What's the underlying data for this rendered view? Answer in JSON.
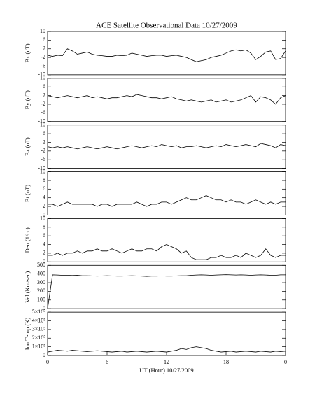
{
  "chart_data": [
    {
      "type": "line",
      "title": "ACE Satellite Observational Data   10/27/2009",
      "ylabel": "Bx (nT)",
      "color": "#000000",
      "xlim": [
        0,
        24
      ],
      "ylim": [
        -10,
        10
      ],
      "yticks": [
        -10,
        -6,
        -2,
        2,
        6,
        10
      ],
      "x": [
        0,
        0.5,
        1,
        1.5,
        2,
        2.5,
        3,
        3.5,
        4,
        4.5,
        5,
        5.5,
        6,
        6.5,
        7,
        7.5,
        8,
        8.5,
        9,
        9.5,
        10,
        10.5,
        11,
        11.5,
        12,
        12.5,
        13,
        13.5,
        14,
        14.5,
        15,
        15.5,
        16,
        16.5,
        17,
        17.5,
        18,
        18.5,
        19,
        19.5,
        20,
        20.5,
        21,
        21.5,
        22,
        22.5,
        23,
        23.5,
        24
      ],
      "values": [
        -1,
        -1.5,
        -1,
        -1.2,
        2,
        1,
        -0.5,
        0,
        0.5,
        -0.5,
        -1,
        -1.2,
        -1.5,
        -1.5,
        -1,
        -1.2,
        -1,
        0,
        -0.5,
        -1,
        -1.5,
        -1.2,
        -1,
        -1,
        -1.5,
        -1.2,
        -1,
        -1.5,
        -2,
        -3,
        -4,
        -3.5,
        -3,
        -2,
        -1.5,
        -1,
        0,
        1,
        1.5,
        1,
        1.5,
        0,
        -3,
        -1.5,
        0.5,
        1,
        -3,
        -2.5,
        1
      ]
    },
    {
      "type": "line",
      "ylabel": "By (nT)",
      "color": "#000000",
      "xlim": [
        0,
        24
      ],
      "ylim": [
        -10,
        10
      ],
      "yticks": [
        -10,
        -6,
        -2,
        2,
        6,
        10
      ],
      "x": [
        0,
        0.5,
        1,
        1.5,
        2,
        2.5,
        3,
        3.5,
        4,
        4.5,
        5,
        5.5,
        6,
        6.5,
        7,
        7.5,
        8,
        8.5,
        9,
        9.5,
        10,
        10.5,
        11,
        11.5,
        12,
        12.5,
        13,
        13.5,
        14,
        14.5,
        15,
        15.5,
        16,
        16.5,
        17,
        17.5,
        18,
        18.5,
        19,
        19.5,
        20,
        20.5,
        21,
        21.5,
        22,
        22.5,
        23,
        23.5,
        24
      ],
      "values": [
        2,
        1.5,
        1,
        1.5,
        2,
        1.5,
        1,
        1.5,
        2,
        1,
        1.5,
        1,
        0.5,
        1,
        1,
        1.5,
        2,
        1.5,
        2.5,
        2,
        1.5,
        1,
        1,
        0.5,
        1,
        1.5,
        0.5,
        0,
        -0.5,
        0,
        -0.5,
        -1,
        -0.5,
        0,
        -1,
        -0.5,
        0,
        -1,
        -0.5,
        0,
        1,
        2,
        -1,
        1.5,
        1,
        0,
        -2,
        1,
        2
      ]
    },
    {
      "type": "line",
      "ylabel": "Bz (nT)",
      "color": "#000000",
      "xlim": [
        0,
        24
      ],
      "ylim": [
        -10,
        10
      ],
      "yticks": [
        -10,
        -6,
        -2,
        2,
        6,
        10
      ],
      "x": [
        0,
        0.5,
        1,
        1.5,
        2,
        2.5,
        3,
        3.5,
        4,
        4.5,
        5,
        5.5,
        6,
        6.5,
        7,
        7.5,
        8,
        8.5,
        9,
        9.5,
        10,
        10.5,
        11,
        11.5,
        12,
        12.5,
        13,
        13.5,
        14,
        14.5,
        15,
        15.5,
        16,
        16.5,
        17,
        17.5,
        18,
        18.5,
        19,
        19.5,
        20,
        20.5,
        21,
        21.5,
        22,
        22.5,
        23,
        23.5,
        24
      ],
      "values": [
        0,
        -0.5,
        0,
        -0.5,
        0,
        -0.5,
        -1,
        -0.5,
        0,
        -0.5,
        -1,
        -0.5,
        0,
        -0.5,
        -1,
        -0.5,
        0,
        0.5,
        0,
        -0.5,
        0,
        0.5,
        0,
        1,
        0.5,
        0,
        0.5,
        -0.5,
        0,
        0,
        0.5,
        0,
        -0.5,
        0,
        0.5,
        0,
        1,
        0.5,
        0,
        0.5,
        1,
        0.5,
        0,
        1.5,
        1,
        0.5,
        -0.5,
        1,
        0.5
      ]
    },
    {
      "type": "line",
      "ylabel": "Bt (nT)",
      "color": "#000000",
      "xlim": [
        0,
        24
      ],
      "ylim": [
        0,
        10
      ],
      "yticks": [
        0,
        2,
        4,
        6,
        8,
        10
      ],
      "x": [
        0,
        0.5,
        1,
        1.5,
        2,
        2.5,
        3,
        3.5,
        4,
        4.5,
        5,
        5.5,
        6,
        6.5,
        7,
        7.5,
        8,
        8.5,
        9,
        9.5,
        10,
        10.5,
        11,
        11.5,
        12,
        12.5,
        13,
        13.5,
        14,
        14.5,
        15,
        15.5,
        16,
        16.5,
        17,
        17.5,
        18,
        18.5,
        19,
        19.5,
        20,
        20.5,
        21,
        21.5,
        22,
        22.5,
        23,
        23.5,
        24
      ],
      "values": [
        2.5,
        2.5,
        2,
        2.5,
        3,
        2.5,
        2.5,
        2.5,
        2.5,
        2.5,
        2,
        2.5,
        2.5,
        2,
        2.5,
        2.5,
        2.5,
        2.5,
        3,
        2.5,
        2,
        2.5,
        2.5,
        3,
        3,
        2.5,
        3,
        3.5,
        4,
        3.5,
        3.5,
        4,
        4.5,
        4,
        3.5,
        3.5,
        3,
        3.5,
        3,
        3,
        2.5,
        3,
        3.5,
        3,
        2.5,
        3,
        2.5,
        3,
        3
      ]
    },
    {
      "type": "line",
      "ylabel": "Den (1/cc)",
      "color": "#000000",
      "xlim": [
        0,
        24
      ],
      "ylim": [
        0,
        10
      ],
      "yticks": [
        0,
        2,
        4,
        6,
        8,
        10
      ],
      "x": [
        0,
        0.5,
        1,
        1.5,
        2,
        2.5,
        3,
        3.5,
        4,
        4.5,
        5,
        5.5,
        6,
        6.5,
        7,
        7.5,
        8,
        8.5,
        9,
        9.5,
        10,
        10.5,
        11,
        11.5,
        12,
        12.5,
        13,
        13.5,
        14,
        14.5,
        15,
        15.5,
        16,
        16.5,
        17,
        17.5,
        18,
        18.5,
        19,
        19.5,
        20,
        20.5,
        21,
        21.5,
        22,
        22.5,
        23,
        23.5,
        24
      ],
      "values": [
        1.5,
        1.5,
        2,
        1.5,
        2,
        2,
        2.5,
        2,
        2.5,
        2.5,
        3,
        2.5,
        2.5,
        3,
        2.5,
        2,
        2.5,
        3,
        2.5,
        2.5,
        3,
        3,
        2.5,
        3.5,
        4,
        3.5,
        3,
        2,
        2.5,
        1,
        0.5,
        0.5,
        0.5,
        1,
        1,
        1.5,
        1,
        1,
        1.5,
        1,
        2,
        1.5,
        1,
        1.5,
        3,
        1.5,
        1,
        1.5,
        1.5
      ]
    },
    {
      "type": "line",
      "ylabel": "Vel (Km/sec)",
      "color": "#000000",
      "xlim": [
        0,
        24
      ],
      "ylim": [
        0,
        500
      ],
      "yticks": [
        0,
        100,
        200,
        300,
        400,
        500
      ],
      "x": [
        0,
        0.5,
        1,
        1.5,
        2,
        2.5,
        3,
        3.5,
        4,
        4.5,
        5,
        5.5,
        6,
        6.5,
        7,
        7.5,
        8,
        8.5,
        9,
        9.5,
        10,
        10.5,
        11,
        11.5,
        12,
        12.5,
        13,
        13.5,
        14,
        14.5,
        15,
        15.5,
        16,
        16.5,
        17,
        17.5,
        18,
        18.5,
        19,
        19.5,
        20,
        20.5,
        21,
        21.5,
        22,
        22.5,
        23,
        23.5,
        24
      ],
      "values": [
        0,
        390,
        388,
        385,
        385,
        383,
        385,
        380,
        380,
        378,
        375,
        378,
        380,
        378,
        375,
        375,
        378,
        380,
        378,
        375,
        372,
        375,
        375,
        378,
        375,
        375,
        378,
        380,
        380,
        385,
        388,
        390,
        388,
        385,
        388,
        390,
        392,
        390,
        388,
        390,
        388,
        385,
        388,
        390,
        388,
        385,
        385,
        390,
        390
      ]
    },
    {
      "type": "line",
      "ylabel": "Ion Temp (K)",
      "xlabel": "UT (Hour)  10/27/2009",
      "color": "#000000",
      "xlim": [
        0,
        24
      ],
      "xticks": [
        0,
        6,
        12,
        18,
        {
          "value": 24,
          "label": "0"
        }
      ],
      "ylim": [
        0,
        500000
      ],
      "yticks": [
        0,
        {
          "value": 100000,
          "label": "1×10⁵"
        },
        {
          "value": 200000,
          "label": "2×10⁵"
        },
        {
          "value": 300000,
          "label": "3×10⁵"
        },
        {
          "value": 400000,
          "label": "4×10⁵"
        },
        {
          "value": 500000,
          "label": "5×10⁵"
        }
      ],
      "x": [
        0,
        0.5,
        1,
        1.5,
        2,
        2.5,
        3,
        3.5,
        4,
        4.5,
        5,
        5.5,
        6,
        6.5,
        7,
        7.5,
        8,
        8.5,
        9,
        9.5,
        10,
        10.5,
        11,
        11.5,
        12,
        12.5,
        13,
        13.5,
        14,
        14.5,
        15,
        15.5,
        16,
        16.5,
        17,
        17.5,
        18,
        18.5,
        19,
        19.5,
        20,
        20.5,
        21,
        21.5,
        22,
        22.5,
        23,
        23.5,
        24
      ],
      "values": [
        40000,
        50000,
        60000,
        55000,
        50000,
        60000,
        55000,
        50000,
        45000,
        50000,
        55000,
        50000,
        45000,
        40000,
        45000,
        50000,
        40000,
        45000,
        50000,
        45000,
        40000,
        45000,
        50000,
        45000,
        40000,
        50000,
        60000,
        80000,
        70000,
        90000,
        100000,
        90000,
        80000,
        60000,
        50000,
        40000,
        45000,
        50000,
        40000,
        45000,
        50000,
        45000,
        40000,
        50000,
        45000,
        40000,
        50000,
        45000,
        50000
      ]
    }
  ]
}
